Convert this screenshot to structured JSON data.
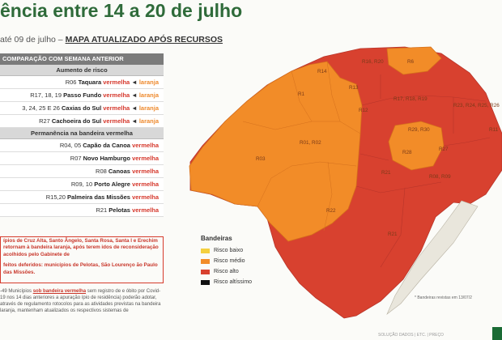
{
  "header": {
    "title": "ência entre 14 a 20 de julho",
    "subtitle_prefix": "até 09 de julho –",
    "subtitle_link": "MAPA ATUALIZADO APÓS RECURSOS"
  },
  "panel": {
    "header": "COMPARAÇÃO COM SEMANA ANTERIOR",
    "section_increase": "Aumento de risco",
    "increase_rows": [
      {
        "regions": "R06",
        "name": "Taquara",
        "from": "vermelha",
        "arrow": "◄",
        "to": "laranja"
      },
      {
        "regions": "R17, 18, 19",
        "name": "Passo Fundo",
        "from": "vermelha",
        "arrow": "◄",
        "to": "laranja"
      },
      {
        "regions": "3, 24, 25 E 26",
        "name": "Caxias do Sul",
        "from": "vermelha",
        "arrow": "◄",
        "to": "laranja"
      },
      {
        "regions": "R27",
        "name": "Cachoeira do Sul",
        "from": "vermelha",
        "arrow": "◄",
        "to": "laranja"
      }
    ],
    "section_keep": "Permanência na bandeira vermelha",
    "keep_rows": [
      {
        "regions": "R04, 05",
        "name": "Capão da Canoa",
        "flag": "vermelha"
      },
      {
        "regions": "R07",
        "name": "Novo Hamburgo",
        "flag": "vermelha"
      },
      {
        "regions": "R08",
        "name": "Canoas",
        "flag": "vermelha"
      },
      {
        "regions": "R09, 10",
        "name": "Porto Alegre",
        "flag": "vermelha"
      },
      {
        "regions": "R15,20",
        "name": "Palmeira das Missões",
        "flag": "vermelha"
      },
      {
        "regions": "R21",
        "name": "Pelotas",
        "flag": "vermelha"
      }
    ]
  },
  "note": {
    "text": "ípios de Cruz Alta, Santo Ângelo, Santa Rosa, Santa l e Erechim retornam à bandeira laranja, após terem idos de reconsideração acolhidos pelo Gabinete de",
    "text2": "feitos deferidos: municípios de Pelotas, São Lourenço ão Paulo das Missões."
  },
  "footer": {
    "prefix": "-49 Municípios",
    "link": "sob bandeira vermelha",
    "text": "sem registro de e óbito por Covid-19 nos 14 dias anteriores a apuração ípio de residência) poderão adotar, através de regulamento rotocolos para as atividades previstas na bandeira laranja, mantenham atualizados os respectivos sistemas de"
  },
  "legend": {
    "title": "Bandeiras",
    "items": [
      {
        "label": "Risco baixo",
        "color": "#f4d03f"
      },
      {
        "label": "Risco médio",
        "color": "#f28c28"
      },
      {
        "label": "Risco alto",
        "color": "#d8412f"
      },
      {
        "label": "Risco altíssimo",
        "color": "#111111"
      }
    ]
  },
  "map_note": "* Bandeiras revistas em 13/07/2",
  "bottom_text": "SOLUÇÃO DADOS | ETC. | PREÇO",
  "map_labels": [
    "R14",
    "R16, R20",
    "R6",
    "R13",
    "R1",
    "R17, R18, R19",
    "R12",
    "R23, R24, R25, R26",
    "R11",
    "R29, R30",
    "R01, R02",
    "R28",
    "R03",
    "R27",
    "R21",
    "R08, R09",
    "R22",
    "R21"
  ],
  "colors": {
    "red": "#d8412f",
    "orange": "#f28c28",
    "brand": "#2f6b3a"
  }
}
